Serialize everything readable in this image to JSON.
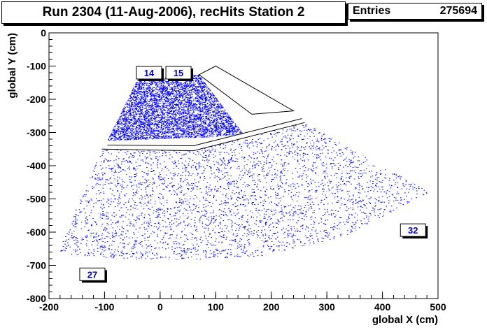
{
  "title": "Run 2304 (11-Aug-2006), recHits Station 2",
  "stats": {
    "label": "Entries",
    "value": "275694"
  },
  "chart_data": {
    "type": "scatter",
    "title": "Run 2304 (11-Aug-2006), recHits Station 2",
    "xlabel": "global X (cm)",
    "ylabel": "global Y (cm)",
    "xlim": [
      -200,
      500
    ],
    "ylim": [
      -800,
      0
    ],
    "xticks": [
      -200,
      -100,
      0,
      100,
      200,
      300,
      400,
      500
    ],
    "yticks": [
      0,
      -100,
      -200,
      -300,
      -400,
      -500,
      -600,
      -700,
      -800
    ],
    "entries": 275694,
    "marker_color": "#0000ff",
    "chamber_labels": [
      {
        "text": "14",
        "x": -20,
        "y": -120
      },
      {
        "text": "15",
        "x": 33,
        "y": -120
      },
      {
        "text": "27",
        "x": -122,
        "y": -727
      },
      {
        "text": "32",
        "x": 455,
        "y": -594
      }
    ],
    "inner_ring_region": [
      [
        -95,
        -325
      ],
      [
        -40,
        -137
      ],
      [
        70,
        -126
      ],
      [
        150,
        -305
      ],
      [
        90,
        -314
      ],
      [
        -20,
        -321
      ]
    ],
    "outer_ring_region": [
      [
        -185,
        -664
      ],
      [
        -105,
        -350
      ],
      [
        60,
        -355
      ],
      [
        260,
        -270
      ],
      [
        485,
        -480
      ],
      [
        330,
        -615
      ],
      [
        180,
        -673
      ],
      [
        60,
        -683
      ],
      [
        -60,
        -683
      ]
    ],
    "empty_chamber_outline": [
      [
        70,
        -126
      ],
      [
        100,
        -100
      ],
      [
        240,
        -235
      ],
      [
        165,
        -245
      ]
    ],
    "gap_arc": [
      [
        -105,
        -350
      ],
      [
        60,
        -355
      ],
      [
        260,
        -270
      ]
    ]
  }
}
